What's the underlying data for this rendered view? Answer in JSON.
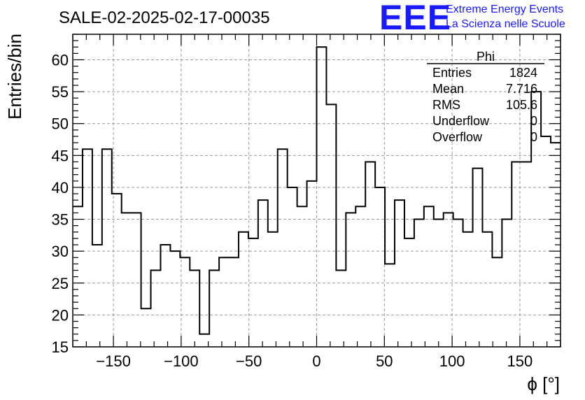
{
  "chart_data": {
    "type": "histogram",
    "title": "SALE-02-2025-02-17-00035",
    "xlabel": "ϕ [°]",
    "ylabel": "Entries/bin",
    "xlim": [
      -180,
      180
    ],
    "ylim": [
      15,
      64
    ],
    "grid": true,
    "x_ticks": [
      -150,
      -100,
      -50,
      0,
      50,
      100,
      150
    ],
    "x_tick_labels": [
      "−150",
      "−100",
      "−50",
      "0",
      "50",
      "100",
      "150"
    ],
    "y_ticks": [
      15,
      20,
      25,
      30,
      35,
      40,
      45,
      50,
      55,
      60
    ],
    "bin_width": 7.2,
    "values": [
      37,
      46,
      31,
      46,
      39,
      36,
      36,
      21,
      27,
      31,
      30,
      29,
      27,
      17,
      27,
      29,
      29,
      33,
      32,
      38,
      33,
      46,
      40,
      37,
      41,
      62,
      53,
      27,
      36,
      37,
      44,
      40,
      28,
      38,
      32,
      35,
      37,
      35,
      36,
      35,
      33,
      43,
      33,
      29,
      35,
      44,
      44,
      55,
      48,
      47
    ],
    "stats_box": {
      "title": "Phi",
      "rows": [
        {
          "label": "Entries",
          "value": "1824"
        },
        {
          "label": "Mean",
          "value": "7.716"
        },
        {
          "label": "RMS",
          "value": "105.6"
        },
        {
          "label": "Underflow",
          "value": "0"
        },
        {
          "label": "Overflow",
          "value": "0"
        }
      ]
    }
  },
  "logo": {
    "mark": "EEE",
    "line1": "Extreme Energy Events",
    "line2": "La Scienza nelle Scuole"
  },
  "colors": {
    "logo": "#1a1aff",
    "line": "#000000",
    "grid": "#999999"
  }
}
